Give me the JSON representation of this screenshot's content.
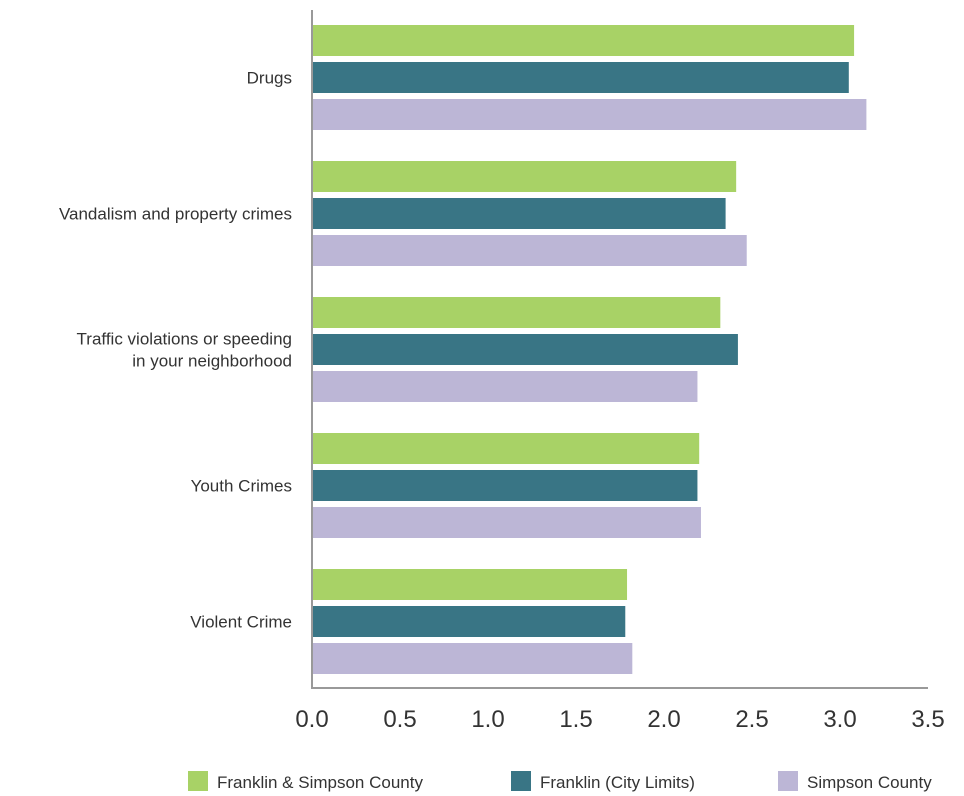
{
  "chart_data": {
    "type": "bar",
    "orientation": "horizontal",
    "categories": [
      [
        "Drugs"
      ],
      [
        "Vandalism and property crimes"
      ],
      [
        "Traffic violations or speeding",
        "in your neighborhood"
      ],
      [
        "Youth Crimes"
      ],
      [
        "Violent Crime"
      ]
    ],
    "series": [
      {
        "name": "Franklin & Simpson County",
        "color": "#a8d266",
        "values": [
          3.08,
          2.41,
          2.32,
          2.2,
          1.79
        ]
      },
      {
        "name": "Franklin (City Limits)",
        "color": "#397585",
        "values": [
          3.05,
          2.35,
          2.42,
          2.19,
          1.78
        ]
      },
      {
        "name": "Simpson County",
        "color": "#bcb6d6",
        "values": [
          3.15,
          2.47,
          2.19,
          2.21,
          1.82
        ]
      }
    ],
    "xlim": [
      0,
      3.5
    ],
    "xticks": [
      "0.0",
      "0.5",
      "1.0",
      "1.5",
      "2.0",
      "2.5",
      "3.0",
      "3.5"
    ],
    "xlabel": "",
    "ylabel": "",
    "title": "",
    "grid": false,
    "legend_position": "bottom"
  }
}
